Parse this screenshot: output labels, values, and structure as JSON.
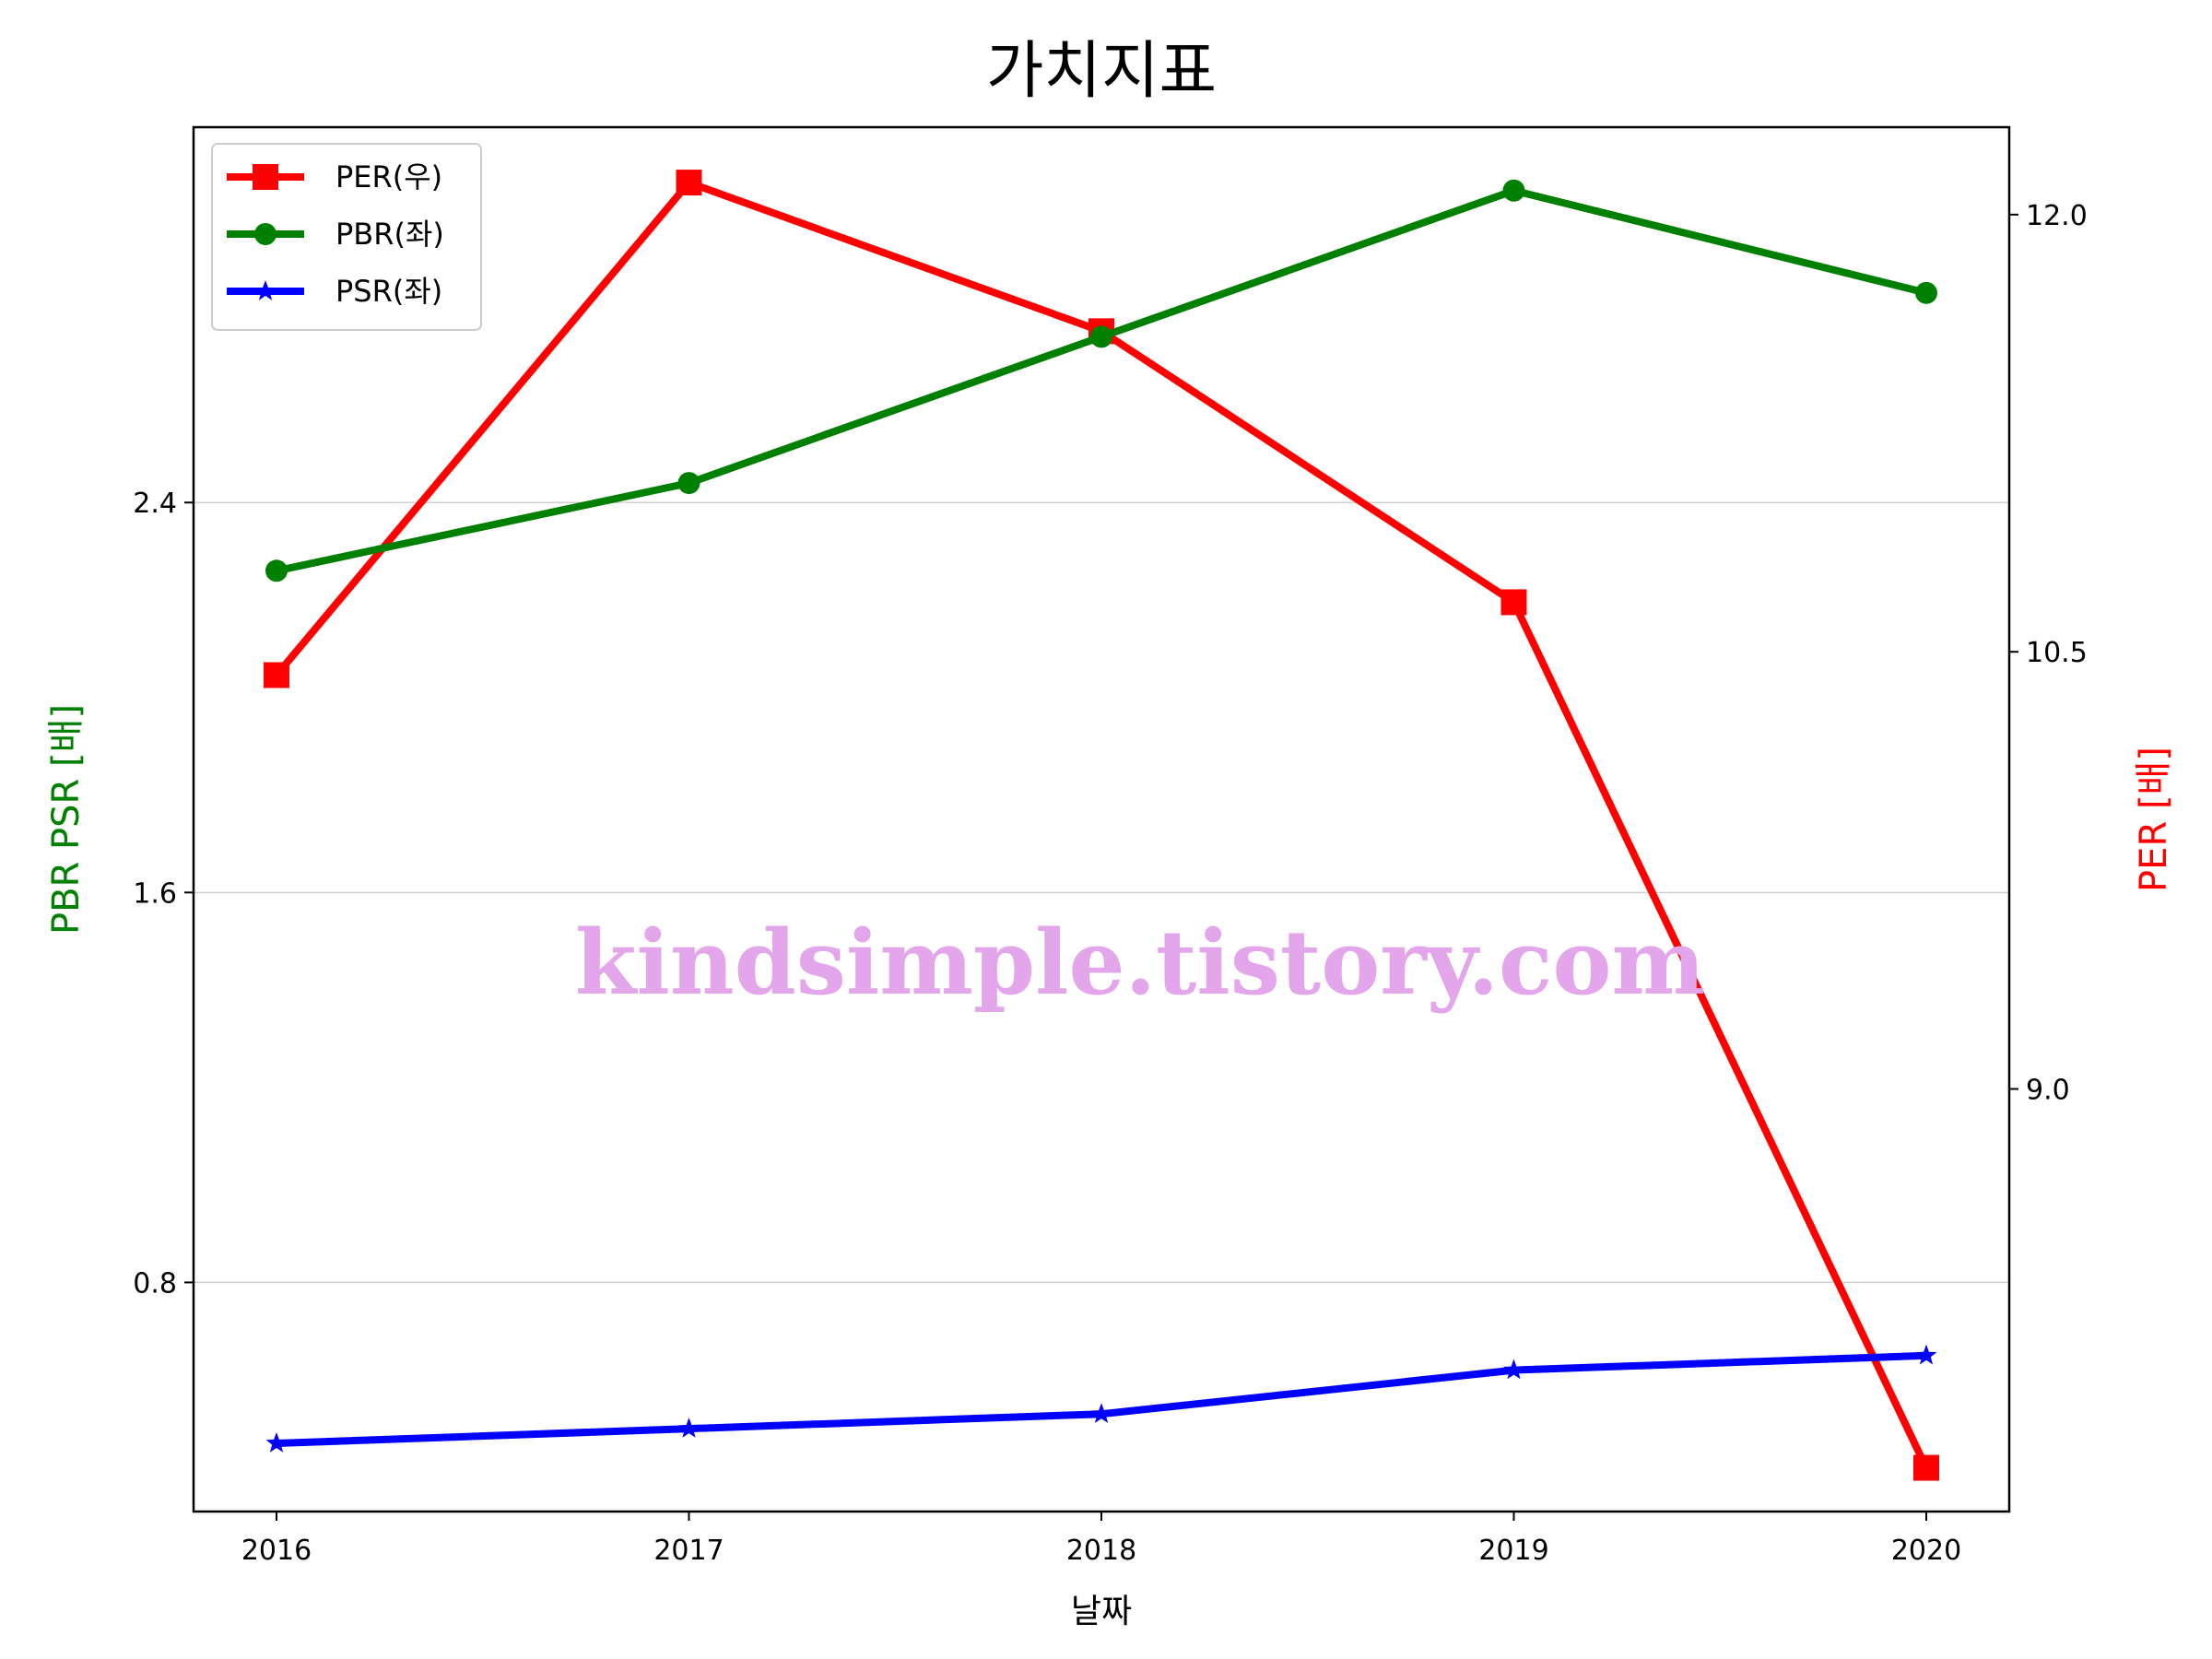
{
  "chart_data": {
    "type": "line",
    "title": "가치지표",
    "xlabel": "날짜",
    "ylabel_left": "PBR PSR [배]",
    "ylabel_right": "PER [배]",
    "categories": [
      "2016",
      "2017",
      "2018",
      "2019",
      "2020"
    ],
    "ylim_left": [
      0.33,
      3.17
    ],
    "ylim_right": [
      7.55,
      12.3
    ],
    "yticks_left": [
      "0.8",
      "1.6",
      "2.4"
    ],
    "yticks_right": [
      "9.0",
      "10.5",
      "12.0"
    ],
    "grid": "horizontal",
    "legend_position": "top-left",
    "series": [
      {
        "name": "PER(우)",
        "axis": "right",
        "marker": "square",
        "color": "#ff0000",
        "values": [
          10.42,
          12.11,
          11.6,
          10.67,
          7.7
        ]
      },
      {
        "name": "PBR(좌)",
        "axis": "left",
        "marker": "circle",
        "color": "#008000",
        "values": [
          2.26,
          2.44,
          2.74,
          3.04,
          2.83
        ]
      },
      {
        "name": "PSR(좌)",
        "axis": "left",
        "marker": "star",
        "color": "#0000ff",
        "values": [
          0.47,
          0.5,
          0.53,
          0.62,
          0.65
        ]
      }
    ],
    "watermark": "kindsimple.tistory.com"
  },
  "colors": {
    "left_axis_label": "#008000",
    "right_axis_label": "#ff0000"
  }
}
